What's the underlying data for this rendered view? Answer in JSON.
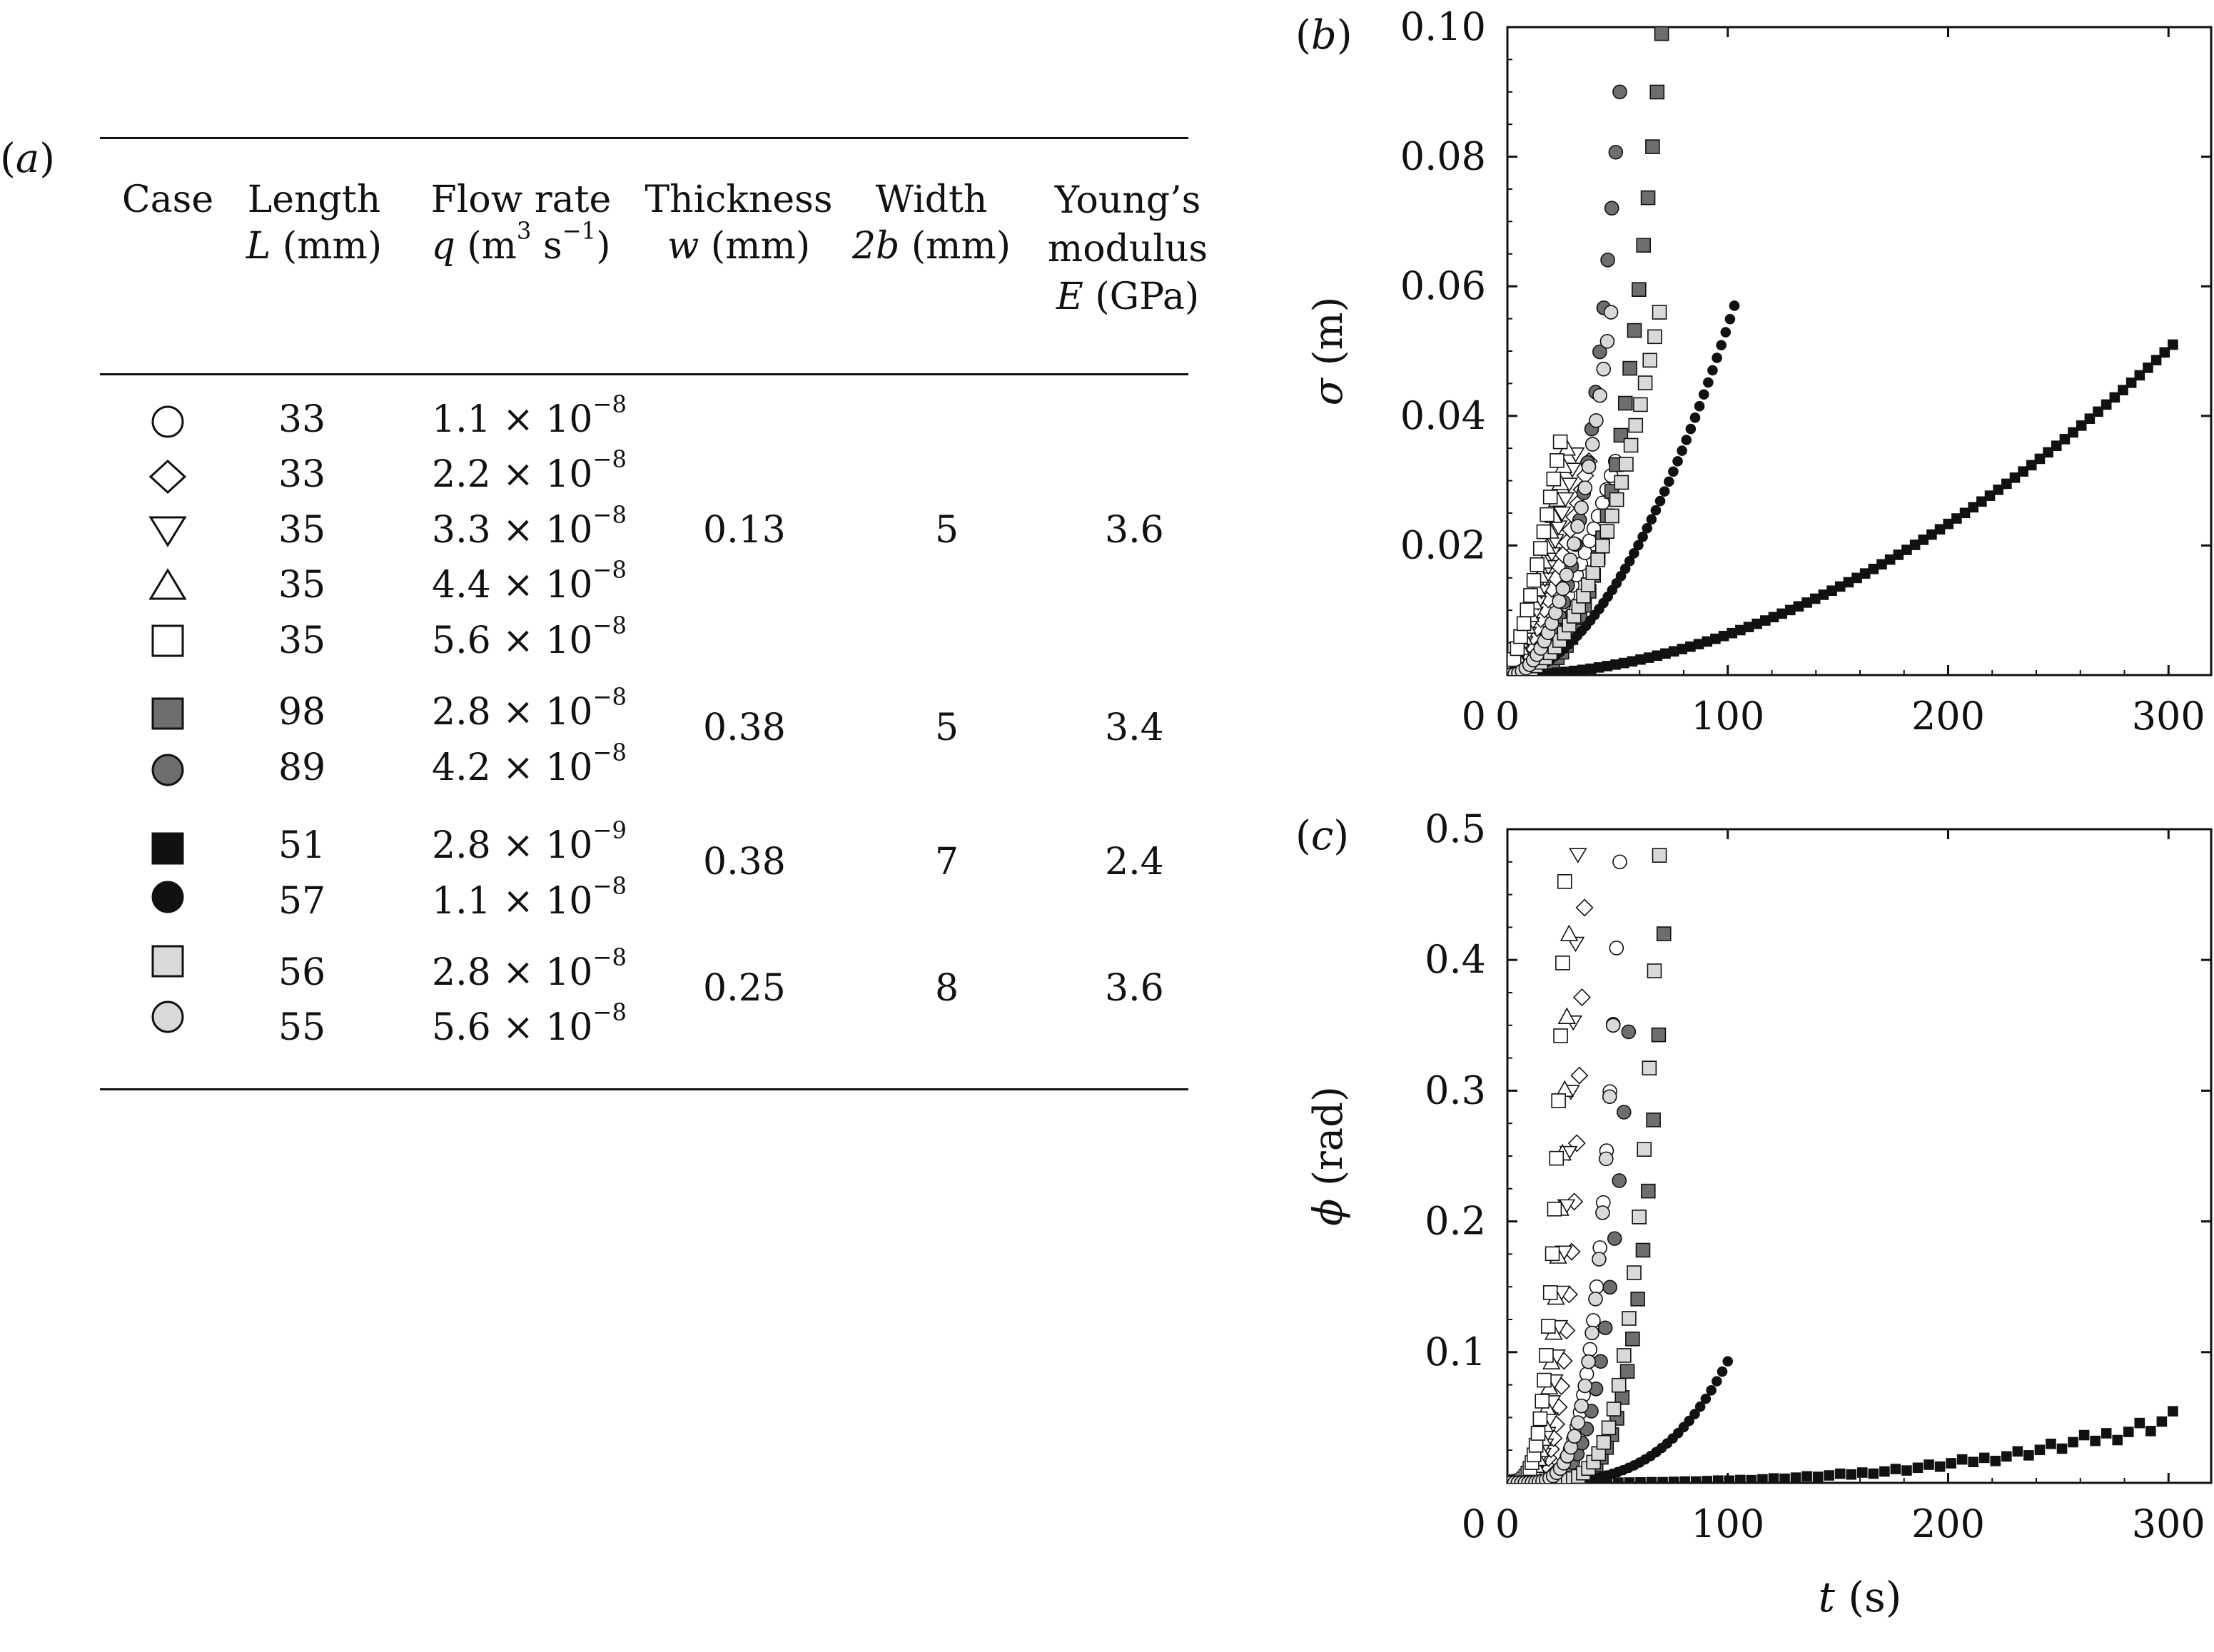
{
  "colors": {
    "ink": "#111111",
    "dark_gray": "#6e6e6e",
    "light_gray": "#d9d9d9",
    "white": "#ffffff"
  },
  "table": {
    "panel_label": "a",
    "headers": {
      "case": "Case",
      "length_line1": "Length",
      "length_sym": "L",
      "length_unit": " (mm)",
      "flow_line1": "Flow rate",
      "flow_sym": "q",
      "flow_unit_a": "  (m",
      "flow_sup_a": "3",
      "flow_unit_b": "  s",
      "flow_sup_b": "−1",
      "flow_unit_c": ")",
      "thickness_line1": "Thickness",
      "thickness_sym": "w",
      "thickness_unit": " (mm)",
      "width_line1": "Width",
      "width_sym": "2b",
      "width_unit": " (mm)",
      "young_line1": "Young’s",
      "young_line2": "modulus",
      "young_sym": "E",
      "young_unit": " (GPa)"
    },
    "rows": [
      {
        "marker": "circle-open",
        "length": "33",
        "mantissa": "1.1 × 10",
        "exp": "−8"
      },
      {
        "marker": "diamond-open",
        "length": "33",
        "mantissa": "2.2 × 10",
        "exp": "−8"
      },
      {
        "marker": "triangle-down-open",
        "length": "35",
        "mantissa": "3.3 × 10",
        "exp": "−8"
      },
      {
        "marker": "triangle-up-open",
        "length": "35",
        "mantissa": "4.4 × 10",
        "exp": "−8"
      },
      {
        "marker": "square-open",
        "length": "35",
        "mantissa": "5.6 × 10",
        "exp": "−8"
      },
      {
        "marker": "square-darkgray",
        "length": "98",
        "mantissa": "2.8 × 10",
        "exp": "−8"
      },
      {
        "marker": "circle-darkgray",
        "length": "89",
        "mantissa": "4.2 × 10",
        "exp": "−8"
      },
      {
        "marker": "square-black",
        "length": "51",
        "mantissa": "2.8 × 10",
        "exp": "−9"
      },
      {
        "marker": "circle-black",
        "length": "57",
        "mantissa": "1.1 × 10",
        "exp": "−8"
      },
      {
        "marker": "square-lightgray",
        "length": "56",
        "mantissa": "2.8 × 10",
        "exp": "−8"
      },
      {
        "marker": "circle-lightgray",
        "length": "55",
        "mantissa": "5.6 × 10",
        "exp": "−8"
      }
    ],
    "groups": [
      {
        "thickness": "0.13",
        "width": "5",
        "young": "3.6"
      },
      {
        "thickness": "0.38",
        "width": "5",
        "young": "3.4"
      },
      {
        "thickness": "0.38",
        "width": "7",
        "young": "2.4"
      },
      {
        "thickness": "0.25",
        "width": "8",
        "young": "3.6"
      }
    ]
  },
  "chart_data": [
    {
      "panel": "b",
      "type": "scatter",
      "title": "",
      "xlabel": "",
      "ylabel_sym": "σ",
      "ylabel_unit": " (m)",
      "xlim": [
        0,
        320
      ],
      "ylim": [
        0,
        0.1
      ],
      "xticks": [
        "0",
        "100",
        "200",
        "300"
      ],
      "yticks": [
        "0.02",
        "0.04",
        "0.06",
        "0.08",
        "0.10"
      ],
      "series": [
        {
          "case": "circle-open",
          "t_end": 49,
          "y_end": 0.033,
          "n": 25,
          "shape": 1.7
        },
        {
          "case": "diamond-open",
          "t_end": 37,
          "y_end": 0.033,
          "n": 22,
          "shape": 1.5
        },
        {
          "case": "triangle-down-open",
          "t_end": 31,
          "y_end": 0.034,
          "n": 20,
          "shape": 1.4
        },
        {
          "case": "triangle-up-open",
          "t_end": 27,
          "y_end": 0.035,
          "n": 18,
          "shape": 1.4
        },
        {
          "case": "square-open",
          "t_end": 24,
          "y_end": 0.036,
          "n": 16,
          "shape": 1.3
        },
        {
          "case": "square-darkgray",
          "t_end": 70,
          "y_end": 0.099,
          "n": 34,
          "shape": 3.2
        },
        {
          "case": "circle-darkgray",
          "t_end": 51,
          "y_end": 0.09,
          "n": 28,
          "shape": 3.0
        },
        {
          "case": "square-black",
          "t_end": 302,
          "y_end": 0.051,
          "n": 80,
          "shape": 1.9
        },
        {
          "case": "circle-black",
          "t_end": 103,
          "y_end": 0.057,
          "n": 52,
          "shape": 1.9
        },
        {
          "case": "square-lightgray",
          "t_end": 69,
          "y_end": 0.056,
          "n": 32,
          "shape": 2.2
        },
        {
          "case": "circle-lightgray",
          "t_end": 47,
          "y_end": 0.056,
          "n": 28,
          "shape": 2.3
        }
      ]
    },
    {
      "panel": "c",
      "type": "scatter",
      "title": "",
      "xlabel_sym": "t",
      "xlabel_unit": " (s)",
      "ylabel_sym": "ϕ",
      "ylabel_unit": " (rad)",
      "xlim": [
        0,
        320
      ],
      "ylim": [
        0,
        0.5
      ],
      "xticks": [
        "0",
        "100",
        "200",
        "300"
      ],
      "yticks": [
        "0.1",
        "0.2",
        "0.3",
        "0.4",
        "0.5"
      ],
      "series": [
        {
          "case": "circle-open",
          "t_end": 51,
          "y_end": 0.475,
          "n": 34,
          "shape": 5
        },
        {
          "case": "diamond-open",
          "t_end": 35,
          "y_end": 0.44,
          "n": 30,
          "shape": 5
        },
        {
          "case": "triangle-down-open",
          "t_end": 32,
          "y_end": 0.48,
          "n": 30,
          "shape": 4.5
        },
        {
          "case": "triangle-up-open",
          "t_end": 28,
          "y_end": 0.42,
          "n": 28,
          "shape": 4.5
        },
        {
          "case": "square-open",
          "t_end": 26,
          "y_end": 0.46,
          "n": 28,
          "shape": 4
        },
        {
          "case": "square-darkgray",
          "t_end": 71,
          "y_end": 0.42,
          "n": 30,
          "shape": 6
        },
        {
          "case": "circle-darkgray",
          "t_end": 55,
          "y_end": 0.345,
          "n": 26,
          "shape": 5
        },
        {
          "case": "square-black",
          "t_end": 302,
          "y_end": 0.05,
          "n": 60,
          "shape": 3
        },
        {
          "case": "circle-black",
          "t_end": 100,
          "y_end": 0.093,
          "n": 40,
          "shape": 3.5
        },
        {
          "case": "square-lightgray",
          "t_end": 69,
          "y_end": 0.48,
          "n": 30,
          "shape": 6
        },
        {
          "case": "circle-lightgray",
          "t_end": 48,
          "y_end": 0.35,
          "n": 30,
          "shape": 5
        }
      ]
    }
  ]
}
